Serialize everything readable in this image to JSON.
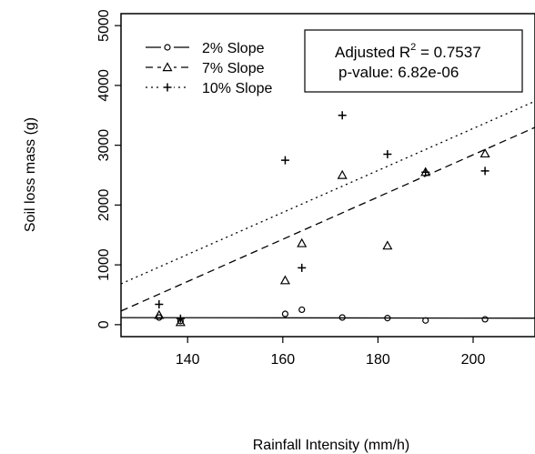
{
  "chart_data": {
    "type": "scatter",
    "xlabel": "Rainfall Intensity (mm/h)",
    "ylabel": "Soil loss mass (g)",
    "xlim": [
      126,
      213
    ],
    "ylim": [
      -200,
      5200
    ],
    "xticks": [
      140,
      160,
      180,
      200
    ],
    "yticks": [
      0,
      1000,
      2000,
      3000,
      4000,
      5000
    ],
    "grid": false,
    "legend_position": "top-left",
    "series": [
      {
        "name": "2% Slope",
        "marker": "circle",
        "linestyle": "solid",
        "x": [
          134,
          138.5,
          160.5,
          164,
          172.5,
          182,
          190,
          202.5
        ],
        "y": [
          120,
          60,
          180,
          250,
          120,
          110,
          70,
          90
        ],
        "fit": {
          "intercept": 130,
          "slope": -0.1
        }
      },
      {
        "name": "7% Slope",
        "marker": "triangle",
        "linestyle": "dashed",
        "x": [
          134,
          138.5,
          160.5,
          164,
          172.5,
          182,
          190,
          202.5
        ],
        "y": [
          160,
          40,
          740,
          1360,
          2500,
          1320,
          2550,
          2860
        ],
        "fit": {
          "intercept": -4220,
          "slope": 35.3
        }
      },
      {
        "name": "10% Slope",
        "marker": "plus",
        "linestyle": "dotted",
        "x": [
          134,
          138.5,
          160.5,
          164,
          172.5,
          182,
          190,
          202.5
        ],
        "y": [
          340,
          100,
          2750,
          950,
          3500,
          2850,
          2550,
          2570
        ],
        "fit": {
          "intercept": -3740,
          "slope": 35.1
        }
      }
    ],
    "annotation": {
      "line1_prefix": "Adjusted R",
      "line1_sup": "2",
      "line1_suffix": " = 0.7537",
      "line2": "p-value: 6.82e-06"
    }
  }
}
